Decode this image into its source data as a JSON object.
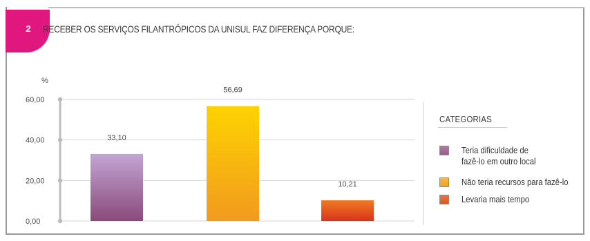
{
  "header": {
    "number": "2",
    "question": "RECEBER OS SERVIÇOS FILANTRÓPICOS DA UNISUL FAZ DIFERENÇA PORQUE:"
  },
  "legend": {
    "title": "CATEGORIAS",
    "items": [
      {
        "label": "Teria dificuldade de\nfazê-lo em outro local",
        "color": "#9b5a8c"
      },
      {
        "label": "Não teria recursos para fazê-lo",
        "color": "#f4a516"
      },
      {
        "label": "Levaria mais tempo",
        "color": "#e0541c"
      }
    ]
  },
  "chart_data": {
    "type": "bar",
    "categories": [
      "Teria dificuldade de fazê-lo em outro local",
      "Não teria recursos para fazê-lo",
      "Levaria mais tempo"
    ],
    "values": [
      33.1,
      56.69,
      10.21
    ],
    "value_labels": [
      "33,10",
      "56,69",
      "10,21"
    ],
    "ylabel": "%",
    "ylim": [
      0,
      60
    ],
    "yticks": [
      0,
      20,
      40,
      60
    ],
    "ytick_labels": [
      "0,00",
      "20,00",
      "40,00",
      "60,00"
    ],
    "grid": true,
    "legend_position": "right"
  }
}
